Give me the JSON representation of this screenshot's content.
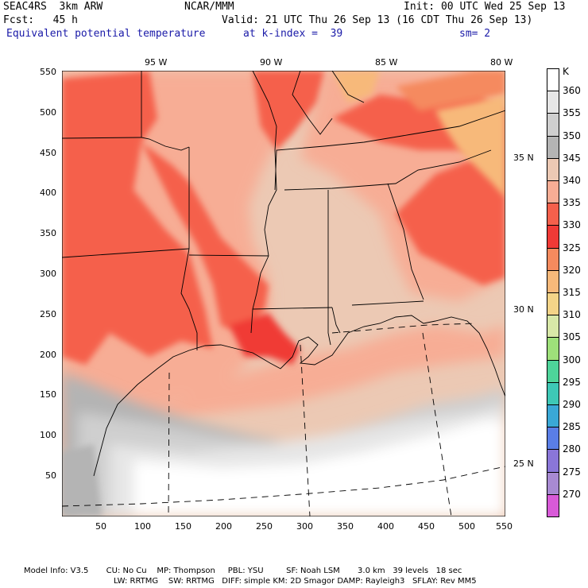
{
  "header": {
    "model": "SEAC4RS  3km ARW",
    "org": "NCAR/MMM",
    "init": "Init: 00 UTC Wed 25 Sep 13",
    "fcst": "Fcst:   45 h",
    "valid": "Valid: 21 UTC Thu 26 Sep 13 (16 CDT Thu 26 Sep 13)",
    "field": "Equivalent potential temperature",
    "level": "at k-index =  39",
    "smooth": "sm= 2"
  },
  "axes": {
    "x_ticks": [
      "50",
      "100",
      "150",
      "200",
      "250",
      "300",
      "350",
      "400",
      "450",
      "500",
      "550"
    ],
    "y_ticks": [
      "550",
      "500",
      "450",
      "400",
      "350",
      "300",
      "250",
      "200",
      "150",
      "100",
      "50"
    ],
    "lon_labels": [
      "95 W",
      "90 W",
      "85 W",
      "80 W"
    ],
    "lat_labels": [
      "35 N",
      "30 N",
      "25 N"
    ]
  },
  "legend": {
    "unit": "K",
    "levels": [
      "360",
      "355",
      "350",
      "345",
      "340",
      "335",
      "330",
      "325",
      "320",
      "315",
      "310",
      "305",
      "300",
      "295",
      "290",
      "285",
      "280",
      "275",
      "270"
    ],
    "colors": [
      "#ffffff",
      "#e6e6e6",
      "#cfcfcf",
      "#b4b4b4",
      "#ecc9b4",
      "#f7ad95",
      "#f5604c",
      "#f03a36",
      "#f58a5e",
      "#f7b97a",
      "#f4d488",
      "#d8e8a8",
      "#9ee07a",
      "#4ed49a",
      "#3ec8b6",
      "#3aa8d6",
      "#5a7ee6",
      "#8a76d8",
      "#a88ad2",
      "#d85ad8"
    ]
  },
  "footer": {
    "line1": "Model Info: V3.5       CU: No Cu    MP: Thompson     PBL: YSU         SF: Noah LSM       3.0 km   39 levels   18 sec",
    "line2": "LW: RRTMG    SW: RRTMG   DIFF: simple KM: 2D Smagor DAMP: Rayleigh3   SFLAY: Rev MM5"
  }
}
